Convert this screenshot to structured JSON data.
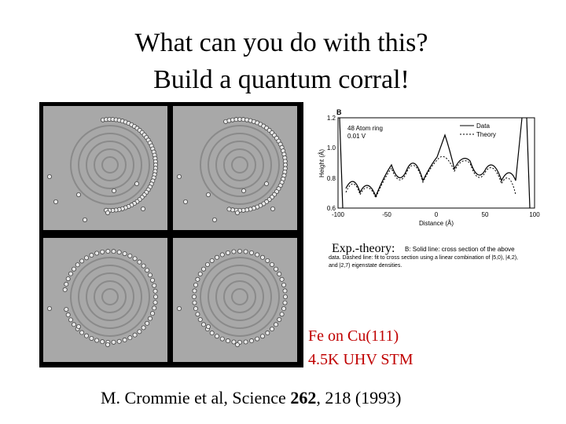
{
  "slide": {
    "title_lines": [
      "What can you do with this?",
      "Build a quantum corral!"
    ],
    "plot": {
      "panel_letter": "B",
      "legend_note": [
        "48 Atom ring",
        "0.01 V"
      ],
      "legend": [
        "Data",
        "Theory"
      ],
      "y_label": "Height (Å)",
      "x_label": "Distance (Å)",
      "y_ticks": [
        "1.2",
        "1.0",
        "0.8",
        "0.6"
      ],
      "x_ticks": [
        "-100",
        "-50",
        "0",
        "50",
        "100"
      ],
      "caption_lines": [
        "B: Solid line: cross section of the above",
        "data. Dashed line: fit to cross section using a linear combination of |5,0), |4,2),",
        "and |2,7) eigenstate densities."
      ]
    },
    "overlay_label": "Exp.-theory:",
    "conditions": [
      "Fe on Cu(111)",
      "4.5K UHV STM"
    ],
    "citation": {
      "before": "M. Crommie et al, Science ",
      "volume": "262",
      "after": ", 218 (1993)"
    }
  }
}
